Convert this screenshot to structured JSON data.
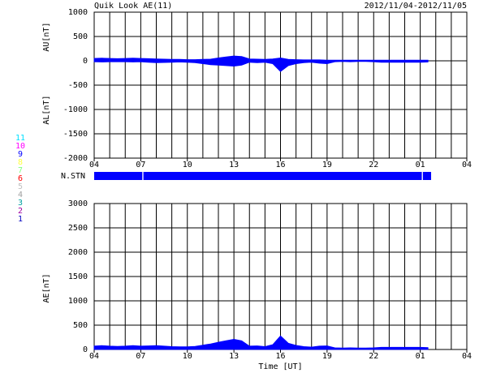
{
  "title": "Quik Look AE(11)",
  "date_range": "2012/11/04-2012/11/05",
  "station_legend": [
    {
      "label": "11",
      "color": "#00e0ff"
    },
    {
      "label": "10",
      "color": "#ff00ff"
    },
    {
      "label": "9",
      "color": "#0000ff"
    },
    {
      "label": "8",
      "color": "#ffff40"
    },
    {
      "label": "7",
      "color": "#80ff80"
    },
    {
      "label": "6",
      "color": "#ff0000"
    },
    {
      "label": "5",
      "color": "#c0c0c0"
    },
    {
      "label": "4",
      "color": "#a0a0a0"
    },
    {
      "label": "3",
      "color": "#00a0a0"
    },
    {
      "label": "2",
      "color": "#a000a0"
    },
    {
      "label": "1",
      "color": "#0000c0"
    }
  ],
  "chart_data": [
    {
      "type": "area",
      "ylabels": [
        "AU[nT]",
        "AL[nT]"
      ],
      "xlim": [
        4,
        28
      ],
      "ylim": [
        -2000,
        1000
      ],
      "yticks": [
        -2000,
        -1500,
        -1000,
        -500,
        0,
        500,
        1000
      ],
      "xticks": [
        {
          "value": 4,
          "label": "04"
        },
        {
          "value": 7,
          "label": "07"
        },
        10,
        13,
        16,
        19,
        22,
        {
          "value": 25,
          "label": "01"
        },
        {
          "value": 28,
          "label": "04"
        }
      ],
      "grid": true,
      "x": [
        4,
        4.5,
        5,
        5.5,
        6,
        6.5,
        7,
        7.5,
        8,
        8.5,
        9,
        9.5,
        10,
        10.5,
        11,
        11.5,
        12,
        12.5,
        13,
        13.5,
        14,
        14.5,
        15,
        15.5,
        16,
        16.5,
        17,
        17.5,
        18,
        18.5,
        19,
        19.5,
        20,
        20.5,
        21,
        21.5,
        22,
        22.5,
        23,
        23.5,
        24,
        24.5,
        25,
        25.5
      ],
      "series": [
        {
          "color": "#0000ff",
          "values": [
            50,
            55,
            50,
            45,
            50,
            55,
            50,
            45,
            40,
            35,
            30,
            30,
            25,
            25,
            30,
            35,
            60,
            80,
            100,
            90,
            40,
            35,
            30,
            40,
            60,
            30,
            25,
            20,
            20,
            20,
            15,
            15,
            15,
            15,
            15,
            15,
            15,
            15,
            15,
            15,
            15,
            15,
            15,
            15
          ]
        },
        {
          "color": "#0000ff",
          "values": [
            -20,
            -25,
            -20,
            -20,
            -20,
            -25,
            -20,
            -30,
            -40,
            -35,
            -30,
            -25,
            -30,
            -40,
            -60,
            -80,
            -90,
            -100,
            -110,
            -90,
            -30,
            -40,
            -30,
            -60,
            -220,
            -100,
            -60,
            -40,
            -30,
            -50,
            -60,
            -20,
            -15,
            -20,
            -15,
            -15,
            -20,
            -30,
            -30,
            -30,
            -30,
            -30,
            -30,
            -25
          ]
        }
      ]
    },
    {
      "type": "timeline",
      "ylabel": "N.STN",
      "xlim": [
        4,
        28
      ],
      "color": "#0000ff",
      "segments": [
        [
          4,
          7.1
        ],
        [
          7.17,
          25.1
        ],
        [
          25.17,
          25.7
        ]
      ]
    },
    {
      "type": "area",
      "ylabels": [
        "AE[nT]"
      ],
      "xlabel": "Time [UT]",
      "xlim": [
        4,
        28
      ],
      "ylim": [
        0,
        3000
      ],
      "yticks": [
        0,
        500,
        1000,
        1500,
        2000,
        2500,
        3000
      ],
      "xticks": [
        {
          "value": 4,
          "label": "04"
        },
        {
          "value": 7,
          "label": "07"
        },
        10,
        13,
        16,
        19,
        22,
        {
          "value": 25,
          "label": "01"
        },
        {
          "value": 28,
          "label": "04"
        }
      ],
      "grid": true,
      "x": [
        4,
        4.5,
        5,
        5.5,
        6,
        6.5,
        7,
        7.5,
        8,
        8.5,
        9,
        9.5,
        10,
        10.5,
        11,
        11.5,
        12,
        12.5,
        13,
        13.5,
        14,
        14.5,
        15,
        15.5,
        16,
        16.5,
        17,
        17.5,
        18,
        18.5,
        19,
        19.5,
        20,
        20.5,
        21,
        21.5,
        22,
        22.5,
        23,
        23.5,
        24,
        24.5,
        25,
        25.5
      ],
      "series": [
        {
          "color": "#0000ff",
          "values": [
            70,
            80,
            70,
            65,
            70,
            80,
            70,
            75,
            80,
            70,
            60,
            55,
            55,
            65,
            90,
            115,
            150,
            180,
            210,
            180,
            70,
            75,
            60,
            100,
            280,
            130,
            85,
            60,
            50,
            70,
            75,
            35,
            30,
            35,
            30,
            30,
            35,
            45,
            45,
            45,
            45,
            45,
            45,
            40
          ]
        }
      ]
    }
  ]
}
